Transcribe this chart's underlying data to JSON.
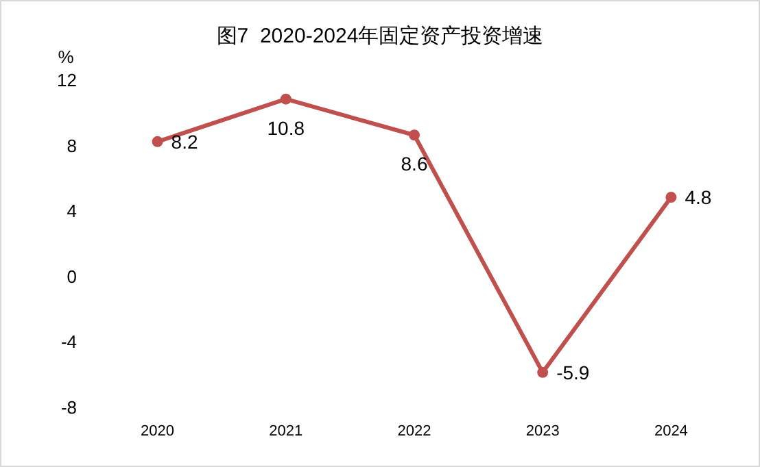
{
  "chart_data": {
    "type": "line",
    "title": "图7  2020-2024年固定资产投资增速",
    "ylabel": "%",
    "categories": [
      "2020",
      "2021",
      "2022",
      "2023",
      "2024"
    ],
    "series": [
      {
        "color": "#c0504d",
        "values": [
          8.2,
          10.8,
          8.6,
          -5.9,
          4.8
        ]
      }
    ],
    "ylim": [
      -8,
      12
    ],
    "yticks": [
      -8,
      -4,
      0,
      4,
      8,
      12
    ],
    "grid": false,
    "marker": "circle",
    "data_labels": true
  }
}
